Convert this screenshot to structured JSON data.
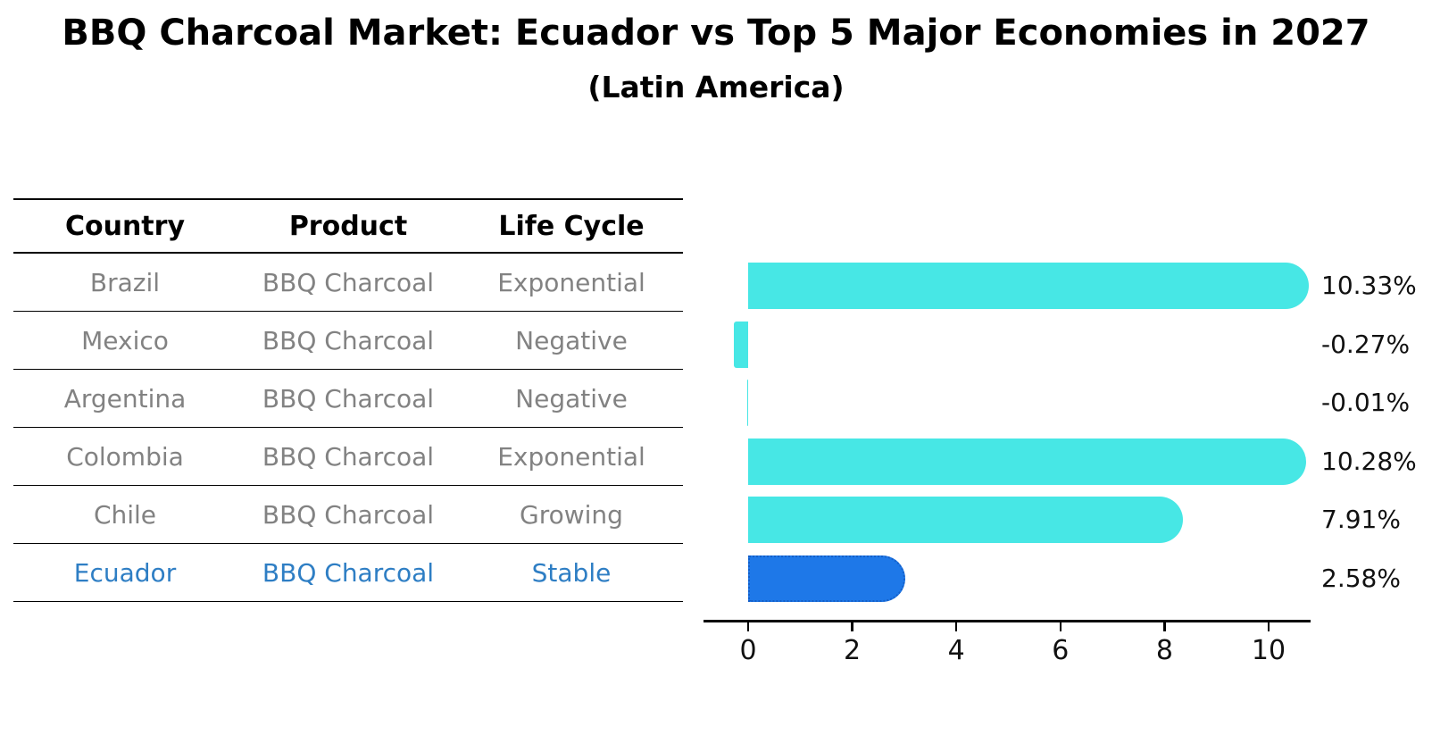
{
  "title": "BBQ Charcoal Market: Ecuador vs Top 5 Major Economies in 2027",
  "subtitle": "(Latin America)",
  "table": {
    "headers": [
      "Country",
      "Product",
      "Life Cycle"
    ],
    "rows": [
      {
        "country": "Brazil",
        "product": "BBQ Charcoal",
        "life_cycle": "Exponential"
      },
      {
        "country": "Mexico",
        "product": "BBQ Charcoal",
        "life_cycle": "Negative"
      },
      {
        "country": "Argentina",
        "product": "BBQ Charcoal",
        "life_cycle": "Negative"
      },
      {
        "country": "Colombia",
        "product": "BBQ Charcoal",
        "life_cycle": "Exponential"
      },
      {
        "country": "Chile",
        "product": "BBQ Charcoal",
        "life_cycle": "Growing"
      },
      {
        "country": "Ecuador",
        "product": "BBQ Charcoal",
        "life_cycle": "Stable"
      }
    ],
    "highlight_row": "Ecuador"
  },
  "chart_data": {
    "type": "bar",
    "orientation": "horizontal",
    "categories": [
      "Brazil",
      "Mexico",
      "Argentina",
      "Colombia",
      "Chile",
      "Ecuador"
    ],
    "values": [
      10.33,
      -0.27,
      -0.01,
      10.28,
      7.91,
      2.58
    ],
    "value_labels": [
      "10.33%",
      "-0.27%",
      "-0.01%",
      "10.28%",
      "7.91%",
      "2.58%"
    ],
    "x_ticks": [
      "0",
      "2",
      "4",
      "6",
      "8",
      "10"
    ],
    "xlim": [
      -0.9,
      10.8
    ],
    "grid": false,
    "legend": false,
    "highlight_index": 5,
    "bar_color": "#47e7e5",
    "highlight_bar_color": "#1e78e8",
    "highlight_border_color": "#145fc8"
  },
  "colors": {
    "title_text": "#000000",
    "table_header_text": "#000000",
    "table_row_text": "#828282",
    "highlight_text": "#2e7ec4",
    "axis": "#000000",
    "value_label_text": "#111111",
    "background": "#ffffff"
  }
}
